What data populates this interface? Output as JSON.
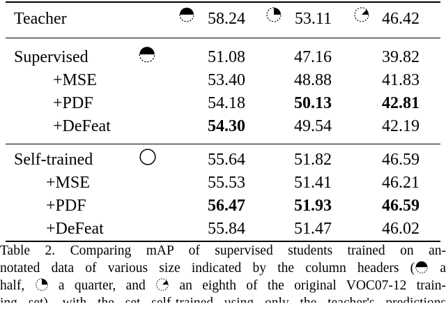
{
  "table": {
    "teacher": {
      "label": "Teacher",
      "values": [
        "58.24",
        "53.11",
        "46.42"
      ],
      "bold": [
        false,
        false,
        false
      ]
    },
    "sections": [
      {
        "base_label": "Supervised",
        "base_icon": "half-circle-icon",
        "rows": [
          {
            "label": "",
            "values": [
              "51.08",
              "47.16",
              "39.82"
            ],
            "bold": [
              false,
              false,
              false
            ]
          },
          {
            "label": "+MSE",
            "values": [
              "53.40",
              "48.88",
              "41.83"
            ],
            "bold": [
              false,
              false,
              false
            ]
          },
          {
            "label": "+PDF",
            "values": [
              "54.18",
              "50.13",
              "42.81"
            ],
            "bold": [
              false,
              true,
              true
            ]
          },
          {
            "label": "+DeFeat",
            "values": [
              "54.30",
              "49.54",
              "42.19"
            ],
            "bold": [
              true,
              false,
              false
            ]
          }
        ]
      },
      {
        "base_label": "Self-trained",
        "base_icon": "empty-circle-icon",
        "rows": [
          {
            "label": "",
            "values": [
              "55.64",
              "51.82",
              "46.59"
            ],
            "bold": [
              false,
              false,
              false
            ]
          },
          {
            "label": "+MSE",
            "values": [
              "55.53",
              "51.41",
              "46.21"
            ],
            "bold": [
              false,
              false,
              false
            ]
          },
          {
            "label": "+PDF",
            "values": [
              "56.47",
              "51.93",
              "46.59"
            ],
            "bold": [
              true,
              true,
              true
            ]
          },
          {
            "label": "+DeFeat",
            "values": [
              "55.84",
              "51.47",
              "46.02"
            ],
            "bold": [
              false,
              false,
              false
            ]
          }
        ]
      }
    ],
    "column_icons": [
      "half-circle-icon",
      "quarter-circle-icon",
      "eighth-circle-icon"
    ]
  },
  "caption": {
    "line1": "Table 2. Comparing mAP of supervised students trained on an-",
    "line2a": "notated data of various size indicated by the column headers (",
    "line2b": " a",
    "line3a": "half, ",
    "line3b": " a quarter, and ",
    "line3c": " an eighth of the original VOC07-12 train-",
    "line4": "ing set), with the set self-trained using only the teacher's predictions"
  }
}
